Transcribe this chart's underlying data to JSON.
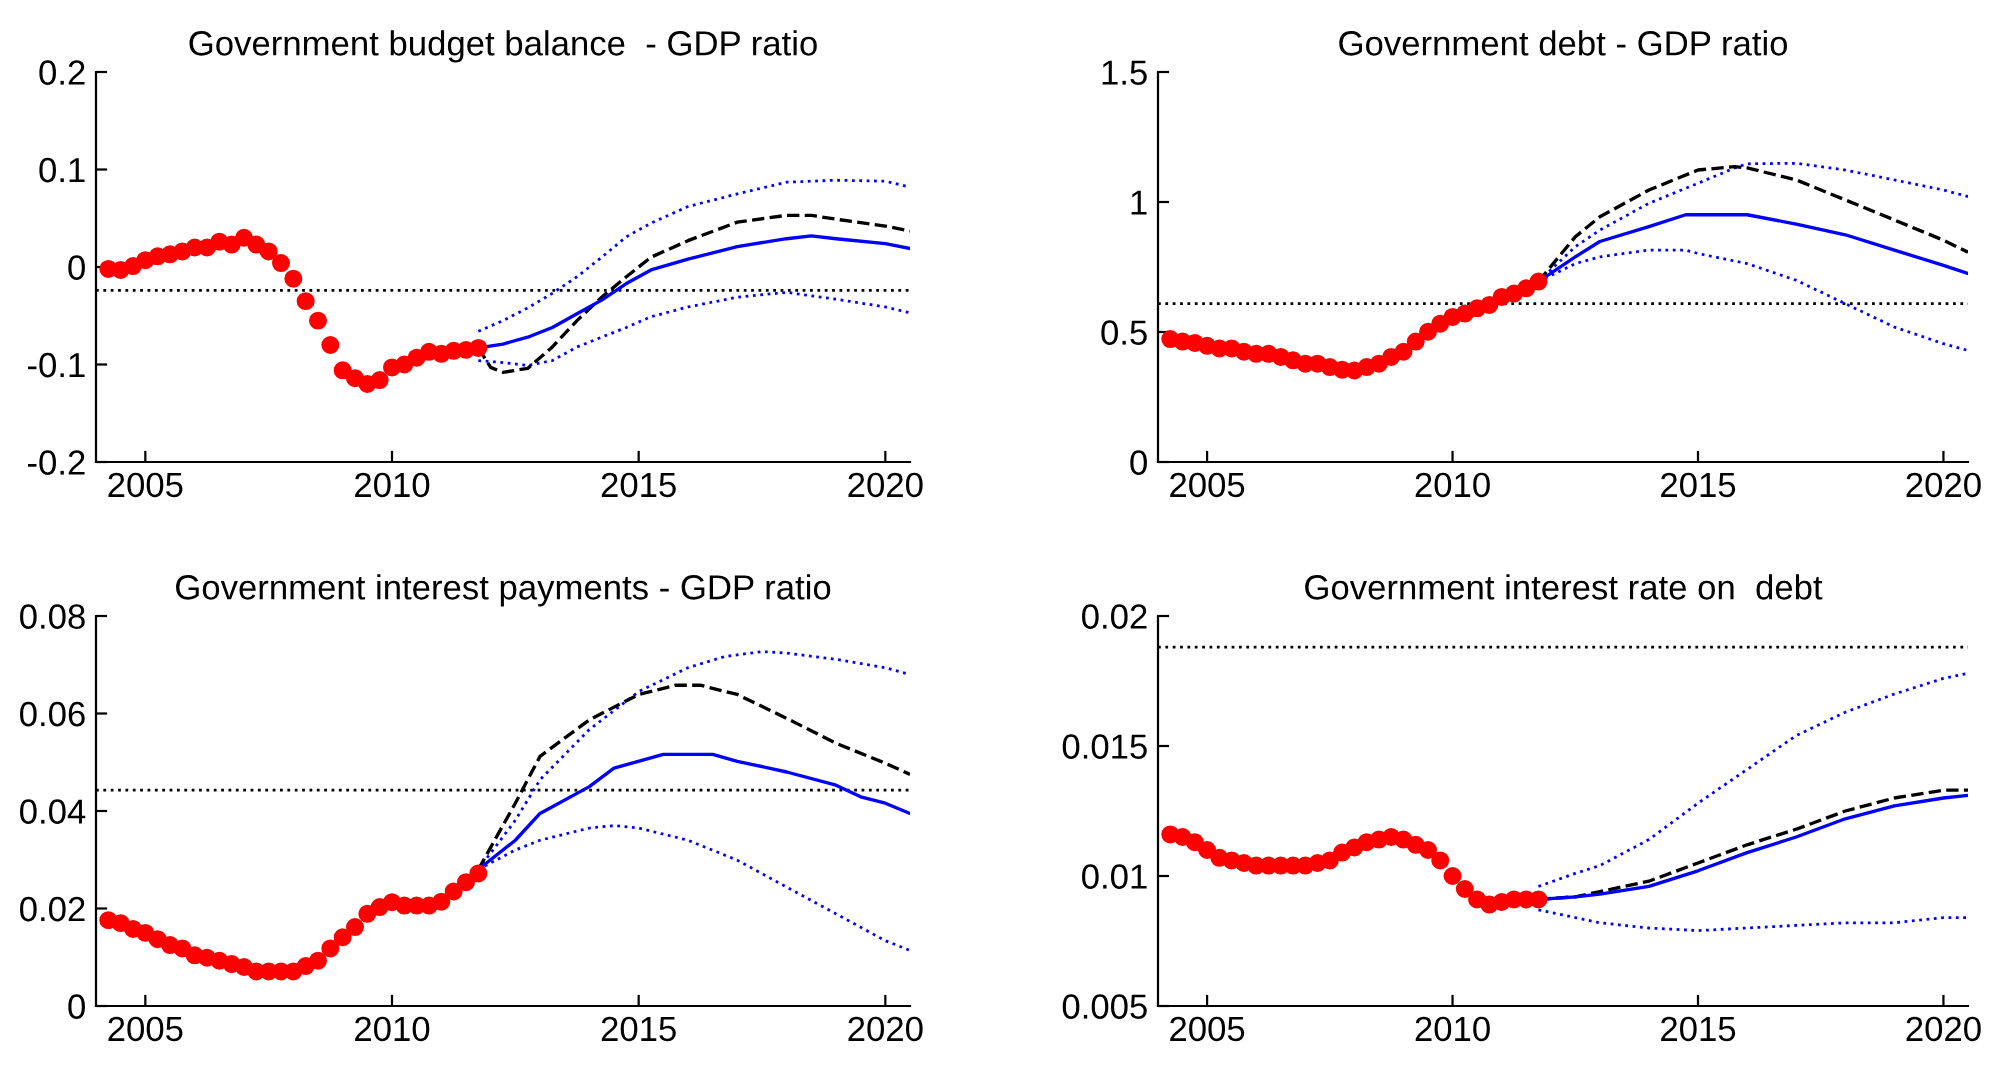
{
  "chart_data": [
    {
      "type": "line",
      "title": "Government budget balance  - GDP ratio",
      "xlim": [
        2004,
        2020.5
      ],
      "xticks": [
        2005,
        2010,
        2015,
        2020
      ],
      "ylim": [
        -0.2,
        0.2
      ],
      "yticks": [
        {
          "value": -0.2,
          "label": "-0.2"
        },
        {
          "value": -0.1,
          "label": "-0.1"
        },
        {
          "value": 0,
          "label": "0"
        },
        {
          "value": 0.1,
          "label": "0.1"
        },
        {
          "value": 0.2,
          "label": "0.2"
        }
      ],
      "ref_lines": [
        {
          "axis": "y",
          "value": -0.024,
          "color": "#000000",
          "line_style": "dotted"
        }
      ],
      "series": [
        {
          "color": "#0000ff",
          "line_style": "dotted",
          "x": [
            2011.75,
            2012.25,
            2012.75,
            2013.25,
            2013.75,
            2014.25,
            2014.75,
            2015.25,
            2016,
            2017,
            2018,
            2019,
            2020,
            2020.5
          ],
          "values": [
            -0.066,
            -0.055,
            -0.042,
            -0.027,
            -0.01,
            0.01,
            0.031,
            0.045,
            0.062,
            0.075,
            0.087,
            0.089,
            0.088,
            0.082
          ]
        },
        {
          "color": "#0000ff",
          "line_style": "dotted",
          "x": [
            2011.75,
            2012.25,
            2012.75,
            2013.25,
            2013.75,
            2014.25,
            2014.75,
            2015.25,
            2016,
            2017,
            2018,
            2019,
            2020,
            2020.5
          ],
          "values": [
            -0.096,
            -0.098,
            -0.101,
            -0.096,
            -0.082,
            -0.072,
            -0.062,
            -0.051,
            -0.041,
            -0.031,
            -0.026,
            -0.033,
            -0.041,
            -0.047
          ]
        },
        {
          "color": "#000000",
          "line_style": "dashed",
          "x": [
            2011.75,
            2012,
            2012.25,
            2012.75,
            2013.25,
            2013.75,
            2014.25,
            2014.75,
            2015.25,
            2016,
            2017,
            2018,
            2018.5,
            2019,
            2020,
            2020.5
          ],
          "values": [
            -0.083,
            -0.103,
            -0.108,
            -0.104,
            -0.082,
            -0.055,
            -0.031,
            -0.01,
            0.01,
            0.027,
            0.046,
            0.053,
            0.053,
            0.049,
            0.042,
            0.037
          ]
        },
        {
          "color": "#0000ff",
          "line_style": "solid",
          "x": [
            2011.75,
            2012.25,
            2012.75,
            2013.25,
            2013.75,
            2014.25,
            2014.75,
            2015.25,
            2016,
            2017,
            2018,
            2018.5,
            2019,
            2020,
            2020.5
          ],
          "values": [
            -0.083,
            -0.079,
            -0.072,
            -0.062,
            -0.048,
            -0.034,
            -0.017,
            -0.003,
            0.008,
            0.021,
            0.029,
            0.032,
            0.029,
            0.024,
            0.019
          ]
        },
        {
          "type": "scatter",
          "color": "#ff0000",
          "marker": "circle",
          "x": [
            2004.25,
            2004.5,
            2004.75,
            2005,
            2005.25,
            2005.5,
            2005.75,
            2006,
            2006.25,
            2006.5,
            2006.75,
            2007,
            2007.25,
            2007.5,
            2007.75,
            2008,
            2008.25,
            2008.5,
            2008.75,
            2009,
            2009.25,
            2009.5,
            2009.75,
            2010,
            2010.25,
            2010.5,
            2010.75,
            2011,
            2011.25,
            2011.5,
            2011.75
          ],
          "values": [
            -0.002,
            -0.003,
            0.001,
            0.007,
            0.011,
            0.013,
            0.016,
            0.02,
            0.02,
            0.026,
            0.023,
            0.03,
            0.023,
            0.016,
            0.004,
            -0.012,
            -0.035,
            -0.055,
            -0.08,
            -0.106,
            -0.114,
            -0.12,
            -0.116,
            -0.103,
            -0.1,
            -0.093,
            -0.087,
            -0.089,
            -0.086,
            -0.085,
            -0.083
          ]
        }
      ]
    },
    {
      "type": "line",
      "title": "Government debt - GDP ratio",
      "xlim": [
        2004,
        2020.5
      ],
      "xticks": [
        2005,
        2010,
        2015,
        2020
      ],
      "ylim": [
        0,
        1.5
      ],
      "yticks": [
        0,
        0.5,
        1,
        1.5
      ],
      "ref_lines": [
        {
          "axis": "y",
          "value": 0.609,
          "color": "#000000",
          "line_style": "dotted"
        }
      ],
      "series": [
        {
          "color": "#0000ff",
          "line_style": "dotted",
          "x": [
            2011.75,
            2012.5,
            2013,
            2014,
            2015,
            2015.75,
            2016,
            2017,
            2018,
            2019,
            2020,
            2020.5
          ],
          "values": [
            0.694,
            0.828,
            0.892,
            0.995,
            1.072,
            1.131,
            1.147,
            1.149,
            1.123,
            1.085,
            1.046,
            1.021
          ]
        },
        {
          "color": "#0000ff",
          "line_style": "dotted",
          "x": [
            2011.75,
            2012.5,
            2013,
            2014,
            2014.75,
            2015,
            2016,
            2017,
            2018,
            2019,
            2020,
            2020.5
          ],
          "values": [
            0.694,
            0.763,
            0.789,
            0.815,
            0.815,
            0.802,
            0.763,
            0.699,
            0.609,
            0.519,
            0.455,
            0.429
          ]
        },
        {
          "color": "#000000",
          "line_style": "dashed",
          "x": [
            2011.75,
            2012.5,
            2013,
            2014,
            2015,
            2015.75,
            2016,
            2017,
            2018,
            2019,
            2020,
            2020.5
          ],
          "values": [
            0.694,
            0.866,
            0.943,
            1.046,
            1.123,
            1.136,
            1.131,
            1.085,
            1.008,
            0.931,
            0.853,
            0.807
          ]
        },
        {
          "color": "#0000ff",
          "line_style": "solid",
          "x": [
            2011.75,
            2012.5,
            2013,
            2014,
            2014.75,
            2015,
            2016,
            2017,
            2018,
            2019,
            2020,
            2020.5
          ],
          "values": [
            0.694,
            0.789,
            0.848,
            0.905,
            0.951,
            0.951,
            0.951,
            0.915,
            0.874,
            0.815,
            0.756,
            0.725
          ]
        },
        {
          "type": "scatter",
          "color": "#ff0000",
          "marker": "circle",
          "x": [
            2004.25,
            2004.5,
            2004.75,
            2005,
            2005.25,
            2005.5,
            2005.75,
            2006,
            2006.25,
            2006.5,
            2006.75,
            2007,
            2007.25,
            2007.5,
            2007.75,
            2008,
            2008.25,
            2008.5,
            2008.75,
            2009,
            2009.25,
            2009.5,
            2009.75,
            2010,
            2010.25,
            2010.5,
            2010.75,
            2011,
            2011.25,
            2011.5,
            2011.75
          ],
          "values": [
            0.473,
            0.463,
            0.458,
            0.447,
            0.437,
            0.437,
            0.424,
            0.416,
            0.416,
            0.404,
            0.391,
            0.378,
            0.378,
            0.365,
            0.355,
            0.352,
            0.365,
            0.378,
            0.404,
            0.424,
            0.463,
            0.501,
            0.532,
            0.558,
            0.571,
            0.591,
            0.604,
            0.635,
            0.648,
            0.668,
            0.694
          ]
        }
      ]
    },
    {
      "type": "line",
      "title": "Government interest payments - GDP ratio",
      "xlim": [
        2004,
        2020.5
      ],
      "xticks": [
        2005,
        2010,
        2015,
        2020
      ],
      "ylim": [
        0,
        0.08
      ],
      "yticks": [
        0,
        0.02,
        0.04,
        0.06,
        0.08
      ],
      "ref_lines": [
        {
          "axis": "y",
          "value": 0.0443,
          "color": "#000000",
          "line_style": "dotted"
        }
      ],
      "series": [
        {
          "color": "#0000ff",
          "line_style": "dotted",
          "x": [
            2011.75,
            2012.5,
            2013,
            2014,
            2015,
            2016,
            2016.75,
            2017.5,
            2018,
            2019,
            2020,
            2020.5
          ],
          "values": [
            0.028,
            0.0381,
            0.0464,
            0.0567,
            0.0645,
            0.0694,
            0.0717,
            0.0727,
            0.0724,
            0.0711,
            0.0694,
            0.068
          ]
        },
        {
          "color": "#0000ff",
          "line_style": "dotted",
          "x": [
            2011.75,
            2012.5,
            2013,
            2014,
            2014.5,
            2015,
            2016,
            2017,
            2018,
            2019,
            2020,
            2020.5
          ],
          "values": [
            0.028,
            0.032,
            0.034,
            0.0365,
            0.037,
            0.0365,
            0.034,
            0.0299,
            0.0244,
            0.0189,
            0.0134,
            0.0114
          ]
        },
        {
          "color": "#000000",
          "line_style": "dashed",
          "x": [
            2011.75,
            2012.5,
            2013,
            2014,
            2015,
            2015.75,
            2016.25,
            2017,
            2018,
            2019,
            2020,
            2020.5
          ],
          "values": [
            0.028,
            0.0416,
            0.0512,
            0.0587,
            0.0639,
            0.0658,
            0.0658,
            0.0639,
            0.059,
            0.0539,
            0.0498,
            0.0475
          ]
        },
        {
          "color": "#0000ff",
          "line_style": "solid",
          "x": [
            2011.75,
            2012.5,
            2013,
            2014,
            2014.5,
            2015.5,
            2016.5,
            2017,
            2018,
            2019,
            2019.5,
            2020,
            2020.5
          ],
          "values": [
            0.028,
            0.034,
            0.0395,
            0.045,
            0.0488,
            0.0516,
            0.0516,
            0.0502,
            0.048,
            0.0453,
            0.0429,
            0.0416,
            0.0395
          ]
        },
        {
          "type": "scatter",
          "color": "#ff0000",
          "marker": "circle",
          "x": [
            2004.25,
            2004.5,
            2004.75,
            2005,
            2005.25,
            2005.5,
            2005.75,
            2006,
            2006.25,
            2006.5,
            2006.75,
            2007,
            2007.25,
            2007.5,
            2007.75,
            2008,
            2008.25,
            2008.5,
            2008.75,
            2009,
            2009.25,
            2009.5,
            2009.75,
            2010,
            2010.25,
            2010.5,
            2010.75,
            2011,
            2011.25,
            2011.5,
            2011.75
          ],
          "values": [
            0.0176,
            0.017,
            0.0158,
            0.015,
            0.0137,
            0.0125,
            0.0118,
            0.0104,
            0.0099,
            0.0093,
            0.0086,
            0.008,
            0.0071,
            0.0071,
            0.0071,
            0.0071,
            0.0082,
            0.0093,
            0.0118,
            0.0141,
            0.0162,
            0.0189,
            0.0203,
            0.0213,
            0.0206,
            0.0206,
            0.0206,
            0.0214,
            0.0235,
            0.0254,
            0.0272
          ]
        }
      ]
    },
    {
      "type": "line",
      "title": "Government interest rate on  debt",
      "xlim": [
        2004,
        2020.5
      ],
      "xticks": [
        2005,
        2010,
        2015,
        2020
      ],
      "ylim": [
        0.005,
        0.02
      ],
      "yticks": [
        0.005,
        0.01,
        0.015,
        0.02
      ],
      "ref_lines": [
        {
          "axis": "y",
          "value": 0.0188,
          "color": "#000000",
          "line_style": "dotted"
        }
      ],
      "series": [
        {
          "color": "#0000ff",
          "line_style": "dotted",
          "x": [
            2011.75,
            2012.5,
            2013,
            2014,
            2015,
            2016,
            2017,
            2018,
            2019,
            2020,
            2020.5
          ],
          "values": [
            0.0096,
            0.0101,
            0.0104,
            0.0114,
            0.0128,
            0.0141,
            0.0154,
            0.0163,
            0.017,
            0.0176,
            0.0178
          ]
        },
        {
          "color": "#0000ff",
          "line_style": "dotted",
          "x": [
            2011.75,
            2012.5,
            2013,
            2014,
            2015,
            2016,
            2017,
            2018,
            2019,
            2020,
            2020.5
          ],
          "values": [
            0.0087,
            0.0084,
            0.0082,
            0.008,
            0.0079,
            0.008,
            0.0081,
            0.0082,
            0.0082,
            0.0084,
            0.0084
          ]
        },
        {
          "color": "#000000",
          "line_style": "dashed",
          "x": [
            2011.75,
            2012.5,
            2013,
            2014,
            2015,
            2016,
            2017,
            2018,
            2019,
            2020,
            2020.5
          ],
          "values": [
            0.0091,
            0.0092,
            0.0094,
            0.0098,
            0.0105,
            0.0112,
            0.0118,
            0.0125,
            0.013,
            0.0133,
            0.0133
          ]
        },
        {
          "color": "#0000ff",
          "line_style": "solid",
          "x": [
            2011.75,
            2012.5,
            2013,
            2014,
            2015,
            2016,
            2017,
            2018,
            2019,
            2020,
            2020.5
          ],
          "values": [
            0.0091,
            0.0092,
            0.0093,
            0.0096,
            0.0102,
            0.0109,
            0.0115,
            0.0122,
            0.0127,
            0.013,
            0.0131
          ]
        },
        {
          "type": "scatter",
          "color": "#ff0000",
          "marker": "circle",
          "x": [
            2004.25,
            2004.5,
            2004.75,
            2005,
            2005.25,
            2005.5,
            2005.75,
            2006,
            2006.25,
            2006.5,
            2006.75,
            2007,
            2007.25,
            2007.5,
            2007.75,
            2008,
            2008.25,
            2008.5,
            2008.75,
            2009,
            2009.25,
            2009.5,
            2009.75,
            2010,
            2010.25,
            2010.5,
            2010.75,
            2011,
            2011.25,
            2011.5,
            2011.75
          ],
          "values": [
            0.0116,
            0.0115,
            0.0113,
            0.011,
            0.0107,
            0.0106,
            0.0105,
            0.0104,
            0.0104,
            0.0104,
            0.0104,
            0.0104,
            0.0105,
            0.0106,
            0.0109,
            0.0111,
            0.0113,
            0.0114,
            0.0115,
            0.0114,
            0.0112,
            0.011,
            0.0106,
            0.01,
            0.0095,
            0.0091,
            0.0089,
            0.009,
            0.0091,
            0.0091,
            0.0091
          ]
        }
      ]
    }
  ]
}
